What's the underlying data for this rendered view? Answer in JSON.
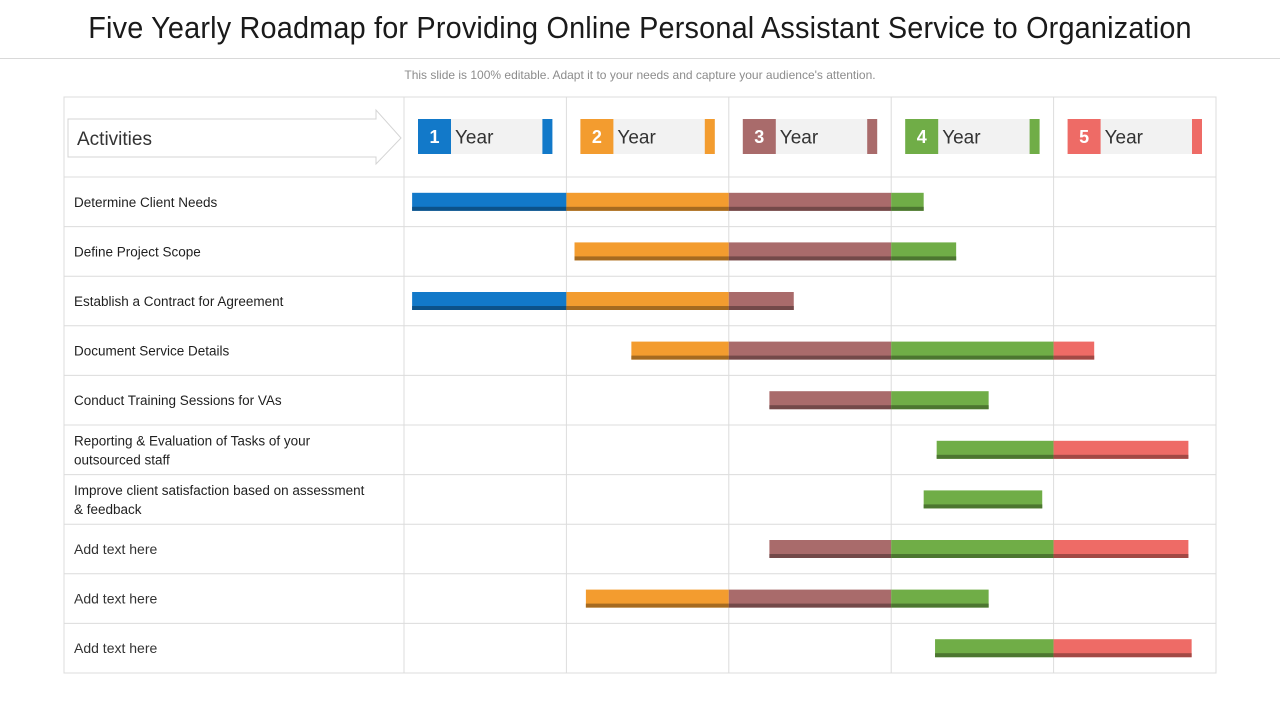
{
  "title": "Five Yearly Roadmap for Providing Online Personal Assistant Service to Organization",
  "subtitle": "This slide is 100% editable. Adapt it to your needs and capture your audience's attention.",
  "activities_header": "Activities",
  "chart_data": {
    "type": "bar",
    "orientation": "horizontal-gantt",
    "x_unit": "year",
    "xlim": [
      0,
      5
    ],
    "grid": true,
    "periods": [
      {
        "number": "1",
        "label": "Year",
        "color": "#1279c9"
      },
      {
        "number": "2",
        "label": "Year",
        "color": "#f39c2f"
      },
      {
        "number": "3",
        "label": "Year",
        "color": "#a96b6b"
      },
      {
        "number": "4",
        "label": "Year",
        "color": "#70ad47"
      },
      {
        "number": "5",
        "label": "Year",
        "color": "#ee6b66"
      }
    ],
    "tasks": [
      {
        "label": [
          "Determine  Client Needs"
        ],
        "start": 0.05,
        "end": 3.2
      },
      {
        "label": [
          "Define Project Scope"
        ],
        "start": 1.05,
        "end": 3.4
      },
      {
        "label": [
          "Establish a Contract for Agreement"
        ],
        "start": 0.05,
        "end": 2.4
      },
      {
        "label": [
          "Document  Service Details"
        ],
        "start": 1.4,
        "end": 4.25
      },
      {
        "label": [
          "Conduct  Training Sessions for VAs"
        ],
        "start": 2.25,
        "end": 3.6
      },
      {
        "label": [
          "Reporting & Evaluation of Tasks of your",
          "outsourced staff"
        ],
        "start": 3.28,
        "end": 4.83
      },
      {
        "label": [
          "Improve  client satisfaction based on assessment",
          "& feedback"
        ],
        "start": 3.2,
        "end": 3.93
      },
      {
        "label": [
          "Add text here"
        ],
        "start": 2.25,
        "end": 4.83,
        "plain": true
      },
      {
        "label": [
          "Add text here"
        ],
        "start": 1.12,
        "end": 3.6,
        "plain": true
      },
      {
        "label": [
          "Add text here"
        ],
        "start": 3.27,
        "end": 4.85,
        "plain": true
      }
    ]
  }
}
